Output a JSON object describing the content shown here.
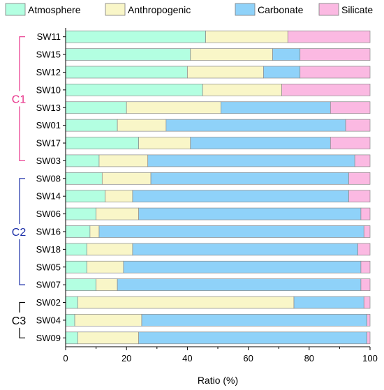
{
  "chart_data": {
    "type": "bar",
    "orientation": "horizontal",
    "stacked": true,
    "title": "",
    "xlabel": "Ratio (%)",
    "ylabel": "",
    "xlim": [
      0,
      100
    ],
    "xticks": [
      0,
      20,
      40,
      60,
      80,
      100
    ],
    "grid": false,
    "legend_position": "top",
    "categories": [
      "SW11",
      "SW15",
      "SW12",
      "SW10",
      "SW13",
      "SW01",
      "SW17",
      "SW03",
      "SW08",
      "SW14",
      "SW06",
      "SW16",
      "SW18",
      "SW05",
      "SW07",
      "SW02",
      "SW04",
      "SW09"
    ],
    "series": [
      {
        "name": "Atmosphere",
        "color": "#b3ffe1",
        "values": [
          46,
          41,
          40,
          45,
          20,
          17,
          24,
          11,
          12,
          13,
          10,
          8,
          7,
          7,
          10,
          4,
          3,
          4
        ]
      },
      {
        "name": "Anthropogenic",
        "color": "#f9f6c8",
        "values": [
          27,
          27,
          25,
          26,
          31,
          16,
          17,
          16,
          16,
          9,
          14,
          3,
          15,
          12,
          7,
          71,
          22,
          20
        ]
      },
      {
        "name": "Carbonate",
        "color": "#8fd2f9",
        "values": [
          0,
          9,
          12,
          0,
          36,
          59,
          46,
          68,
          65,
          71,
          73,
          87,
          74,
          78,
          80,
          23,
          74,
          75
        ]
      },
      {
        "name": "Silicate",
        "color": "#fbb9e2",
        "values": [
          27,
          23,
          23,
          29,
          13,
          8,
          13,
          5,
          7,
          7,
          3,
          2,
          4,
          3,
          3,
          2,
          1,
          1
        ]
      }
    ],
    "groups": [
      {
        "label": "C1",
        "color": "#e8328a",
        "start": "SW11",
        "end": "SW03"
      },
      {
        "label": "C2",
        "color": "#1c2fa8",
        "start": "SW08",
        "end": "SW07"
      },
      {
        "label": "C3",
        "color": "#000000",
        "start": "SW02",
        "end": "SW09"
      }
    ]
  }
}
